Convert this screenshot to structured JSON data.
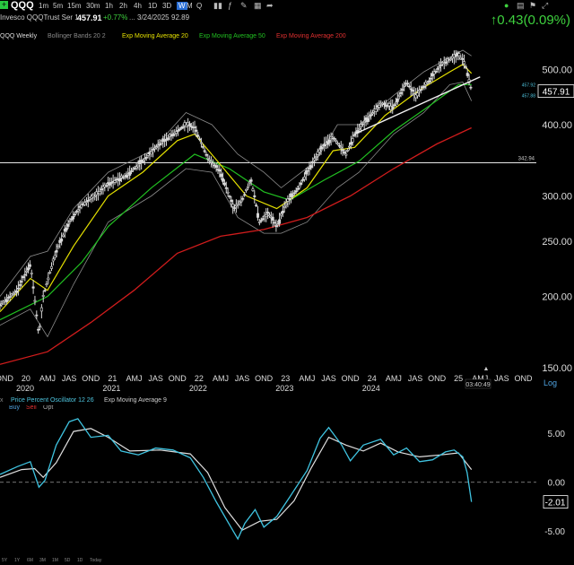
{
  "header": {
    "symbol": "QQQ",
    "timeframes": [
      "1m",
      "5m",
      "15m",
      "30m",
      "1h",
      "2h",
      "4h",
      "1D",
      "3D",
      "W",
      "M",
      "Q"
    ],
    "active_timeframe": "W",
    "name": "Invesco QQQTrust Ser 1",
    "price": "457.91",
    "change_pct": "+0.77%",
    "dots": "...",
    "date": "3/24/2025",
    "extra": "92.89",
    "change_big": "0.43",
    "change_big_pct": "(0.09%)",
    "colors": {
      "up": "#3ed13e",
      "accent": "#2a6fd6"
    }
  },
  "indicators": {
    "symbol_tf": "QQQ Weekly",
    "bollinger": "Bollinger Bands 20 2",
    "ema20": "Exp Moving Average 20",
    "ema50": "Exp Moving Average 50",
    "ema200": "Exp Moving Average 200",
    "colors": {
      "ema20": "#e4e000",
      "ema50": "#21c021",
      "ema200": "#d01c1c",
      "bollinger": "#9a9a9a"
    }
  },
  "chart_data": [
    {
      "type": "candlestick-line",
      "title": "QQQ Weekly",
      "y_ticks": [
        "500.00",
        "400.00",
        "300.00",
        "250.00",
        "200.00",
        "150.00"
      ],
      "y_tick_values": [
        500,
        400,
        300,
        250,
        200,
        150
      ],
      "ylim": [
        150,
        560
      ],
      "scale": "log",
      "x_months": [
        "OND",
        "20",
        "AMJ",
        "JAS",
        "OND",
        "21",
        "AMJ",
        "JAS",
        "OND",
        "22",
        "AMJ",
        "JAS",
        "OND",
        "23",
        "AMJ",
        "JAS",
        "OND",
        "24",
        "AMJ",
        "JAS",
        "OND",
        "25",
        "AMJ",
        "JAS",
        "OND"
      ],
      "x_years": [
        "2020",
        "2021",
        "2022",
        "2023",
        "2024"
      ],
      "x_start": 2019.75,
      "x_end": 2025.95,
      "close": [
        {
          "x": 2019.75,
          "y": 193
        },
        {
          "x": 2019.95,
          "y": 205
        },
        {
          "x": 2020.1,
          "y": 228
        },
        {
          "x": 2020.2,
          "y": 170
        },
        {
          "x": 2020.25,
          "y": 200
        },
        {
          "x": 2020.4,
          "y": 240
        },
        {
          "x": 2020.55,
          "y": 270
        },
        {
          "x": 2020.7,
          "y": 290
        },
        {
          "x": 2020.85,
          "y": 300
        },
        {
          "x": 2021.0,
          "y": 315
        },
        {
          "x": 2021.2,
          "y": 325
        },
        {
          "x": 2021.4,
          "y": 345
        },
        {
          "x": 2021.55,
          "y": 365
        },
        {
          "x": 2021.7,
          "y": 380
        },
        {
          "x": 2021.9,
          "y": 400
        },
        {
          "x": 2022.0,
          "y": 395
        },
        {
          "x": 2022.15,
          "y": 350
        },
        {
          "x": 2022.3,
          "y": 330
        },
        {
          "x": 2022.45,
          "y": 285
        },
        {
          "x": 2022.55,
          "y": 295
        },
        {
          "x": 2022.65,
          "y": 320
        },
        {
          "x": 2022.75,
          "y": 270
        },
        {
          "x": 2022.85,
          "y": 280
        },
        {
          "x": 2022.95,
          "y": 265
        },
        {
          "x": 2023.05,
          "y": 290
        },
        {
          "x": 2023.2,
          "y": 310
        },
        {
          "x": 2023.35,
          "y": 340
        },
        {
          "x": 2023.5,
          "y": 370
        },
        {
          "x": 2023.6,
          "y": 380
        },
        {
          "x": 2023.75,
          "y": 355
        },
        {
          "x": 2023.85,
          "y": 385
        },
        {
          "x": 2024.0,
          "y": 410
        },
        {
          "x": 2024.15,
          "y": 435
        },
        {
          "x": 2024.3,
          "y": 430
        },
        {
          "x": 2024.45,
          "y": 475
        },
        {
          "x": 2024.55,
          "y": 450
        },
        {
          "x": 2024.7,
          "y": 475
        },
        {
          "x": 2024.85,
          "y": 510
        },
        {
          "x": 2024.95,
          "y": 520
        },
        {
          "x": 2025.05,
          "y": 530
        },
        {
          "x": 2025.12,
          "y": 515
        },
        {
          "x": 2025.18,
          "y": 475
        },
        {
          "x": 2025.2,
          "y": 457.91
        }
      ],
      "ema20": [
        {
          "x": 2019.75,
          "y": 188
        },
        {
          "x": 2020.1,
          "y": 215
        },
        {
          "x": 2020.3,
          "y": 205
        },
        {
          "x": 2020.6,
          "y": 245
        },
        {
          "x": 2021.0,
          "y": 300
        },
        {
          "x": 2021.4,
          "y": 330
        },
        {
          "x": 2021.8,
          "y": 375
        },
        {
          "x": 2022.0,
          "y": 385
        },
        {
          "x": 2022.3,
          "y": 340
        },
        {
          "x": 2022.6,
          "y": 300
        },
        {
          "x": 2022.95,
          "y": 285
        },
        {
          "x": 2023.3,
          "y": 310
        },
        {
          "x": 2023.6,
          "y": 360
        },
        {
          "x": 2023.85,
          "y": 365
        },
        {
          "x": 2024.2,
          "y": 415
        },
        {
          "x": 2024.6,
          "y": 460
        },
        {
          "x": 2024.95,
          "y": 495
        },
        {
          "x": 2025.1,
          "y": 510
        },
        {
          "x": 2025.2,
          "y": 492
        }
      ],
      "ema50": [
        {
          "x": 2019.75,
          "y": 182
        },
        {
          "x": 2020.3,
          "y": 200
        },
        {
          "x": 2020.7,
          "y": 230
        },
        {
          "x": 2021.0,
          "y": 265
        },
        {
          "x": 2021.5,
          "y": 310
        },
        {
          "x": 2022.0,
          "y": 355
        },
        {
          "x": 2022.4,
          "y": 335
        },
        {
          "x": 2022.8,
          "y": 305
        },
        {
          "x": 2023.1,
          "y": 295
        },
        {
          "x": 2023.5,
          "y": 320
        },
        {
          "x": 2023.9,
          "y": 345
        },
        {
          "x": 2024.3,
          "y": 390
        },
        {
          "x": 2024.7,
          "y": 430
        },
        {
          "x": 2025.05,
          "y": 470
        },
        {
          "x": 2025.2,
          "y": 470
        }
      ],
      "ema200": [
        {
          "x": 2019.75,
          "y": 152
        },
        {
          "x": 2020.3,
          "y": 160
        },
        {
          "x": 2020.8,
          "y": 180
        },
        {
          "x": 2021.3,
          "y": 205
        },
        {
          "x": 2021.8,
          "y": 238
        },
        {
          "x": 2022.3,
          "y": 255
        },
        {
          "x": 2022.8,
          "y": 262
        },
        {
          "x": 2023.3,
          "y": 275
        },
        {
          "x": 2023.8,
          "y": 300
        },
        {
          "x": 2024.3,
          "y": 335
        },
        {
          "x": 2024.8,
          "y": 370
        },
        {
          "x": 2025.2,
          "y": 395
        }
      ],
      "bb_upper": [
        {
          "x": 2019.75,
          "y": 200
        },
        {
          "x": 2020.1,
          "y": 235
        },
        {
          "x": 2020.3,
          "y": 240
        },
        {
          "x": 2020.6,
          "y": 285
        },
        {
          "x": 2021.0,
          "y": 330
        },
        {
          "x": 2021.5,
          "y": 360
        },
        {
          "x": 2021.9,
          "y": 420
        },
        {
          "x": 2022.2,
          "y": 400
        },
        {
          "x": 2022.5,
          "y": 355
        },
        {
          "x": 2022.8,
          "y": 330
        },
        {
          "x": 2023.0,
          "y": 310
        },
        {
          "x": 2023.4,
          "y": 345
        },
        {
          "x": 2023.65,
          "y": 400
        },
        {
          "x": 2023.9,
          "y": 400
        },
        {
          "x": 2024.3,
          "y": 450
        },
        {
          "x": 2024.65,
          "y": 495
        },
        {
          "x": 2024.95,
          "y": 525
        },
        {
          "x": 2025.1,
          "y": 540
        },
        {
          "x": 2025.2,
          "y": 528
        }
      ],
      "bb_lower": [
        {
          "x": 2019.75,
          "y": 178
        },
        {
          "x": 2020.1,
          "y": 190
        },
        {
          "x": 2020.3,
          "y": 170
        },
        {
          "x": 2020.6,
          "y": 210
        },
        {
          "x": 2021.0,
          "y": 270
        },
        {
          "x": 2021.5,
          "y": 300
        },
        {
          "x": 2021.9,
          "y": 335
        },
        {
          "x": 2022.2,
          "y": 330
        },
        {
          "x": 2022.5,
          "y": 275
        },
        {
          "x": 2022.8,
          "y": 258
        },
        {
          "x": 2023.0,
          "y": 258
        },
        {
          "x": 2023.3,
          "y": 270
        },
        {
          "x": 2023.65,
          "y": 310
        },
        {
          "x": 2023.9,
          "y": 330
        },
        {
          "x": 2024.3,
          "y": 385
        },
        {
          "x": 2024.65,
          "y": 420
        },
        {
          "x": 2024.95,
          "y": 470
        },
        {
          "x": 2025.1,
          "y": 475
        },
        {
          "x": 2025.2,
          "y": 440
        }
      ],
      "horizontal_line": 342.94,
      "horizontal_line_label": "342.94",
      "trendline": [
        {
          "x": 2023.85,
          "y": 385
        },
        {
          "x": 2025.3,
          "y": 485
        }
      ],
      "last_price_label": "457.91",
      "small_labels": [
        "457.92",
        "457.88"
      ],
      "log_label": "Log",
      "time_label": "03:40:49"
    },
    {
      "type": "line",
      "title": "Price Percent Oscillator 12 26",
      "subtitle": "Exp Moving Average 9",
      "y_ticks": [
        "5.00",
        "0.00",
        "-5.00"
      ],
      "y_tick_values": [
        5,
        0,
        -5
      ],
      "ylim": [
        -7,
        7.5
      ],
      "last_value_label": "-2.01",
      "buttons": [
        "Buy",
        "Sell",
        "Opt"
      ],
      "ppo": [
        {
          "x": 2019.75,
          "y": 0.8
        },
        {
          "x": 2019.95,
          "y": 1.6
        },
        {
          "x": 2020.1,
          "y": 2.1
        },
        {
          "x": 2020.2,
          "y": -0.5
        },
        {
          "x": 2020.27,
          "y": 0.2
        },
        {
          "x": 2020.4,
          "y": 3.8
        },
        {
          "x": 2020.55,
          "y": 6.2
        },
        {
          "x": 2020.65,
          "y": 6.5
        },
        {
          "x": 2020.8,
          "y": 4.6
        },
        {
          "x": 2021.0,
          "y": 4.8
        },
        {
          "x": 2021.15,
          "y": 3.2
        },
        {
          "x": 2021.35,
          "y": 2.8
        },
        {
          "x": 2021.55,
          "y": 3.5
        },
        {
          "x": 2021.75,
          "y": 3.3
        },
        {
          "x": 2021.95,
          "y": 2.5
        },
        {
          "x": 2022.1,
          "y": 0.5
        },
        {
          "x": 2022.25,
          "y": -2.0
        },
        {
          "x": 2022.4,
          "y": -4.3
        },
        {
          "x": 2022.5,
          "y": -5.8
        },
        {
          "x": 2022.58,
          "y": -4.2
        },
        {
          "x": 2022.7,
          "y": -2.8
        },
        {
          "x": 2022.8,
          "y": -4.6
        },
        {
          "x": 2022.95,
          "y": -3.5
        },
        {
          "x": 2023.1,
          "y": -1.5
        },
        {
          "x": 2023.3,
          "y": 1.2
        },
        {
          "x": 2023.45,
          "y": 4.5
        },
        {
          "x": 2023.55,
          "y": 5.6
        },
        {
          "x": 2023.7,
          "y": 3.8
        },
        {
          "x": 2023.8,
          "y": 2.2
        },
        {
          "x": 2023.95,
          "y": 3.8
        },
        {
          "x": 2024.15,
          "y": 4.4
        },
        {
          "x": 2024.3,
          "y": 2.8
        },
        {
          "x": 2024.45,
          "y": 3.5
        },
        {
          "x": 2024.6,
          "y": 2.1
        },
        {
          "x": 2024.75,
          "y": 2.3
        },
        {
          "x": 2024.9,
          "y": 3.1
        },
        {
          "x": 2025.0,
          "y": 3.3
        },
        {
          "x": 2025.1,
          "y": 2.6
        },
        {
          "x": 2025.15,
          "y": 1.0
        },
        {
          "x": 2025.2,
          "y": -2.01
        }
      ],
      "signal": [
        {
          "x": 2019.75,
          "y": 0.5
        },
        {
          "x": 2020.0,
          "y": 1.3
        },
        {
          "x": 2020.15,
          "y": 1.4
        },
        {
          "x": 2020.25,
          "y": 0.5
        },
        {
          "x": 2020.4,
          "y": 2.0
        },
        {
          "x": 2020.6,
          "y": 5.2
        },
        {
          "x": 2020.8,
          "y": 5.5
        },
        {
          "x": 2021.0,
          "y": 4.6
        },
        {
          "x": 2021.25,
          "y": 3.2
        },
        {
          "x": 2021.6,
          "y": 3.3
        },
        {
          "x": 2021.95,
          "y": 2.9
        },
        {
          "x": 2022.15,
          "y": 1.0
        },
        {
          "x": 2022.35,
          "y": -2.6
        },
        {
          "x": 2022.55,
          "y": -4.9
        },
        {
          "x": 2022.75,
          "y": -4.0
        },
        {
          "x": 2022.95,
          "y": -3.8
        },
        {
          "x": 2023.15,
          "y": -1.9
        },
        {
          "x": 2023.35,
          "y": 1.5
        },
        {
          "x": 2023.55,
          "y": 4.6
        },
        {
          "x": 2023.75,
          "y": 3.8
        },
        {
          "x": 2023.95,
          "y": 3.2
        },
        {
          "x": 2024.15,
          "y": 4.0
        },
        {
          "x": 2024.35,
          "y": 3.1
        },
        {
          "x": 2024.6,
          "y": 2.6
        },
        {
          "x": 2024.85,
          "y": 2.8
        },
        {
          "x": 2025.05,
          "y": 3.0
        },
        {
          "x": 2025.2,
          "y": 1.3
        }
      ]
    }
  ],
  "footer": {
    "ranges": [
      "5Y",
      "1Y",
      "6M",
      "3M",
      "1M",
      "5D",
      "1D",
      "Today"
    ]
  }
}
